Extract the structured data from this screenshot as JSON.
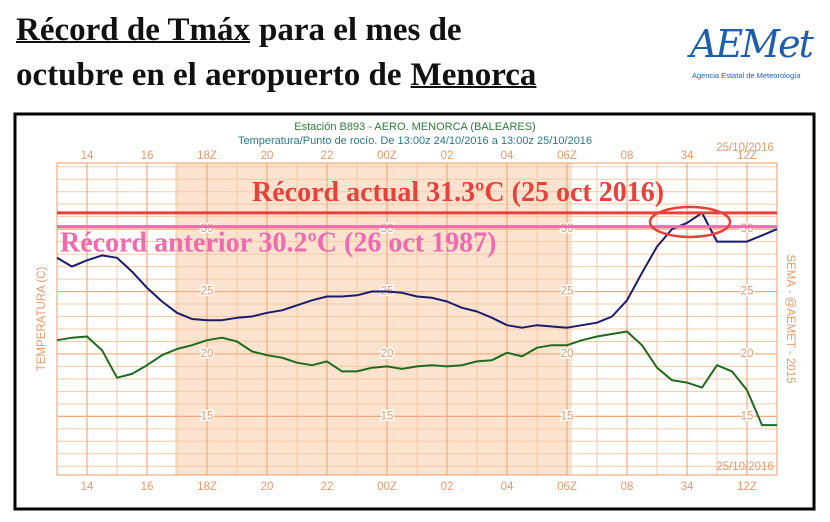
{
  "header": {
    "title_line1": [
      "Récord de Tmáx",
      "para el mes de"
    ],
    "title_line2": [
      "octubre en el aeropuerto de",
      "Menorca"
    ],
    "logo": {
      "name": "AEMet",
      "tagline": "Agencia Estatal de Meteorología"
    }
  },
  "chart_data": {
    "type": "line",
    "title": "Estación B893 - AERO. MENORCA (BALEARES)",
    "subtitle": "Temperatura/Punto de rocío. De 13:00z 24/10/2016 a 13:00z 25/10/2016",
    "y_label": "TEMPERATURA (C)",
    "credit": "SEMA - @AEMET - 2015",
    "date_label": "25/10/2016",
    "x": [
      13,
      13.5,
      14,
      14.5,
      15,
      15.5,
      16,
      16.5,
      17,
      17.5,
      18,
      18.5,
      19,
      19.5,
      20,
      20.5,
      21,
      21.5,
      22,
      22.5,
      23,
      23.5,
      24,
      24.5,
      25,
      25.5,
      26,
      26.5,
      27,
      27.5,
      28,
      28.5,
      29,
      29.5,
      30,
      30.5,
      31,
      31.5,
      32,
      32.5,
      33,
      33.5,
      34,
      34.5,
      35,
      35.5,
      36,
      36.5,
      37
    ],
    "series": [
      {
        "color": "#1a1a6e",
        "values": [
          27.7,
          27.0,
          27.5,
          27.9,
          27.7,
          26.6,
          25.3,
          24.2,
          23.3,
          22.8,
          22.7,
          22.7,
          22.9,
          23.0,
          23.3,
          23.5,
          23.9,
          24.3,
          24.6,
          24.6,
          24.7,
          25.0,
          25.0,
          24.9,
          24.6,
          24.5,
          24.2,
          23.7,
          23.4,
          22.9,
          22.3,
          22.1,
          22.3,
          22.2,
          22.1,
          22.3,
          22.5,
          23.0,
          24.3,
          26.5,
          28.6,
          30.0,
          30.5,
          31.3,
          29.0,
          29.0,
          29.0,
          29.5,
          30.0
        ]
      },
      {
        "color": "#1e6b1e",
        "values": [
          21.1,
          21.3,
          21.4,
          20.3,
          18.1,
          18.4,
          19.1,
          19.9,
          20.4,
          20.7,
          21.1,
          21.3,
          21.0,
          20.2,
          19.9,
          19.7,
          19.3,
          19.1,
          19.4,
          18.6,
          18.6,
          18.9,
          19.0,
          18.8,
          19.0,
          19.1,
          19.0,
          19.1,
          19.4,
          19.5,
          20.1,
          19.8,
          20.5,
          20.7,
          20.7,
          21.1,
          21.4,
          21.6,
          21.8,
          20.7,
          18.9,
          17.9,
          17.7,
          17.3,
          19.1,
          18.6,
          17.1,
          14.3,
          14.3
        ]
      }
    ],
    "xlim": [
      13,
      37
    ],
    "xticks": [
      14,
      16,
      {
        "value": 18,
        "label": "18Z"
      },
      20,
      22,
      {
        "value": 24,
        "label": "00Z"
      },
      {
        "value": 26,
        "label": "02"
      },
      {
        "value": 28,
        "label": "04"
      },
      {
        "value": 30,
        "label": "06Z"
      },
      {
        "value": 32,
        "label": "08"
      },
      34,
      {
        "value": 36,
        "label": "12Z"
      }
    ],
    "ylim": [
      10.3,
      35.3
    ],
    "yticks": [
      15,
      20,
      25,
      30
    ],
    "grid": true,
    "records": [
      {
        "label": "Récord actual 31.3ºC (25 oct 2016)",
        "value": 31.3,
        "color": "#e8403a"
      },
      {
        "label": "Récord anterior 30.2ºC (26 oct 1987)",
        "value": 30.2,
        "color": "#f06ab0"
      }
    ]
  }
}
